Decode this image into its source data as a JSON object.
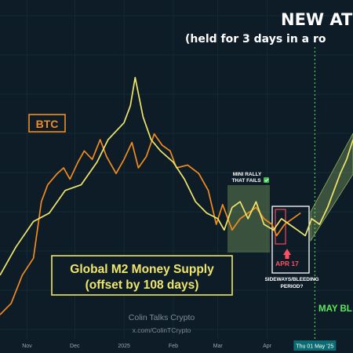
{
  "chart_data": {
    "type": "line",
    "title": "NEW AT",
    "subtitle": "(held for 3 days in a ro",
    "x_range": [
      "2024-10-15",
      "2025-05-25"
    ],
    "y_range": [
      0,
      100
    ],
    "grid": true,
    "x_ticks": [
      {
        "label": "Nov",
        "date": "2024-11-01"
      },
      {
        "label": "Dec",
        "date": "2024-12-01"
      },
      {
        "label": "2025",
        "date": "2025-01-01"
      },
      {
        "label": "Feb",
        "date": "2025-02-01"
      },
      {
        "label": "Mar",
        "date": "2025-03-01"
      },
      {
        "label": "Apr",
        "date": "2025-04-01"
      }
    ],
    "cursor": {
      "label": "Thu 01 May '25",
      "date": "2025-05-01"
    },
    "series": [
      {
        "name": "BTC",
        "color": "#f28c1e",
        "points": [
          [
            "2024-10-15",
            8
          ],
          [
            "2024-10-22",
            12
          ],
          [
            "2024-10-29",
            22
          ],
          [
            "2024-11-05",
            28
          ],
          [
            "2024-11-10",
            48
          ],
          [
            "2024-11-14",
            54
          ],
          [
            "2024-11-20",
            58
          ],
          [
            "2024-11-24",
            60
          ],
          [
            "2024-11-28",
            56
          ],
          [
            "2024-12-03",
            62
          ],
          [
            "2024-12-07",
            66
          ],
          [
            "2024-12-12",
            63
          ],
          [
            "2024-12-17",
            70
          ],
          [
            "2024-12-21",
            64
          ],
          [
            "2024-12-27",
            58
          ],
          [
            "2025-01-01",
            63
          ],
          [
            "2025-01-06",
            69
          ],
          [
            "2025-01-10",
            60
          ],
          [
            "2025-01-15",
            64
          ],
          [
            "2025-01-20",
            72
          ],
          [
            "2025-01-25",
            68
          ],
          [
            "2025-01-30",
            66
          ],
          [
            "2025-02-03",
            60
          ],
          [
            "2025-02-10",
            61
          ],
          [
            "2025-02-17",
            58
          ],
          [
            "2025-02-23",
            52
          ],
          [
            "2025-02-28",
            40
          ],
          [
            "2025-03-04",
            47
          ],
          [
            "2025-03-10",
            38
          ],
          [
            "2025-03-15",
            42
          ],
          [
            "2025-03-20",
            44
          ],
          [
            "2025-03-25",
            46
          ],
          [
            "2025-03-30",
            42
          ],
          [
            "2025-04-04",
            40
          ],
          [
            "2025-04-07",
            36
          ],
          [
            "2025-04-12",
            40
          ],
          [
            "2025-04-17",
            42
          ],
          [
            "2025-04-22",
            44
          ]
        ]
      },
      {
        "name": "Global M2 Money Supply",
        "color": "#efe66b",
        "points": [
          [
            "2024-10-15",
            22
          ],
          [
            "2024-10-25",
            32
          ],
          [
            "2024-11-05",
            41
          ],
          [
            "2024-11-15",
            44
          ],
          [
            "2024-11-25",
            52
          ],
          [
            "2024-12-05",
            54
          ],
          [
            "2024-12-15",
            62
          ],
          [
            "2024-12-22",
            70
          ],
          [
            "2025-01-01",
            76
          ],
          [
            "2025-01-05",
            82
          ],
          [
            "2025-01-08",
            92
          ],
          [
            "2025-01-13",
            78
          ],
          [
            "2025-01-18",
            70
          ],
          [
            "2025-01-24",
            66
          ],
          [
            "2025-02-01",
            62
          ],
          [
            "2025-02-08",
            56
          ],
          [
            "2025-02-15",
            48
          ],
          [
            "2025-02-22",
            44
          ],
          [
            "2025-03-01",
            42
          ],
          [
            "2025-03-05",
            38
          ],
          [
            "2025-03-10",
            46
          ],
          [
            "2025-03-15",
            48
          ],
          [
            "2025-03-20",
            42
          ],
          [
            "2025-03-25",
            48
          ],
          [
            "2025-03-30",
            40
          ],
          [
            "2025-04-05",
            38
          ],
          [
            "2025-04-10",
            42
          ],
          [
            "2025-04-15",
            40
          ],
          [
            "2025-04-20",
            38
          ],
          [
            "2025-04-25",
            36
          ],
          [
            "2025-04-29",
            42
          ],
          [
            "2025-05-04",
            40
          ],
          [
            "2025-05-09",
            46
          ],
          [
            "2025-05-13",
            52
          ],
          [
            "2025-05-17",
            58
          ],
          [
            "2025-05-21",
            63
          ],
          [
            "2025-05-25",
            70
          ]
        ]
      }
    ],
    "annotations": {
      "btc_label": "BTC",
      "m2_label_line1": "Global M2 Money Supply",
      "m2_label_line2": "(offset by 108 days)",
      "mini_rally_line1": "MINI RALLY",
      "mini_rally_line2": "THAT FAILS",
      "apr17": "APR 17",
      "sideways_line1": "SIDEWAYS/BLEEDING",
      "sideways_line2": "PERIOD?",
      "may_label": "MAY BL",
      "watermark_line1": "Colin Talks Crypto",
      "watermark_line2": "x.com/ColinTCrypto"
    },
    "colors": {
      "background": "#0d1c26",
      "btc": "#f28c1e",
      "m2": "#efe66b",
      "green": "#5ee85e",
      "red": "#ff4f63"
    }
  }
}
